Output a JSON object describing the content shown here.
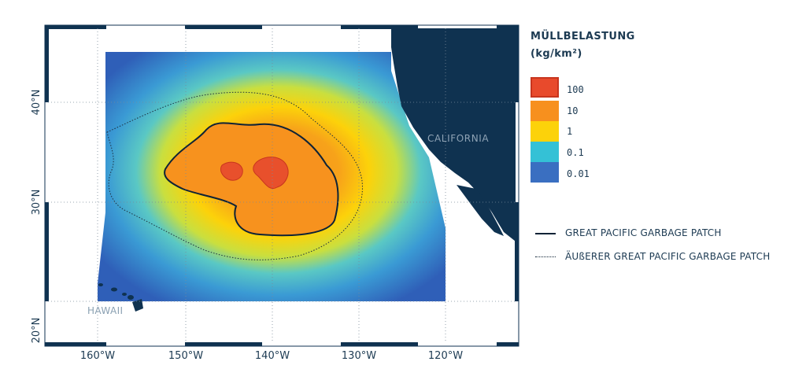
{
  "map": {
    "land_labels": {
      "california": "CALIFORNIA",
      "hawaii": "HAWAII"
    },
    "lat_ticks": [
      "40°N",
      "30°N",
      "20°N"
    ],
    "lon_ticks": [
      "160°W",
      "150°W",
      "140°W",
      "130°W",
      "120°W"
    ],
    "colors": {
      "land": "#0f3250",
      "frame": "#0f3250",
      "grid": "#7a8a99"
    }
  },
  "legend": {
    "title_line1": "MÜLLBELASTUNG",
    "title_line2": "(kg/km²)",
    "levels": [
      {
        "label": "100",
        "color": "#e84a2c"
      },
      {
        "label": "10",
        "color": "#f7901e"
      },
      {
        "label": "1",
        "color": "#fcd20a"
      },
      {
        "label": "0.1",
        "color": "#34c1d6"
      },
      {
        "label": "0.01",
        "color": "#3a6fc1"
      }
    ],
    "lines": [
      {
        "label": "GREAT PACIFIC GARBAGE PATCH",
        "style": "solid"
      },
      {
        "label": "ÄUßERER GREAT PACIFIC GARBAGE PATCH",
        "style": "dotted"
      }
    ]
  }
}
